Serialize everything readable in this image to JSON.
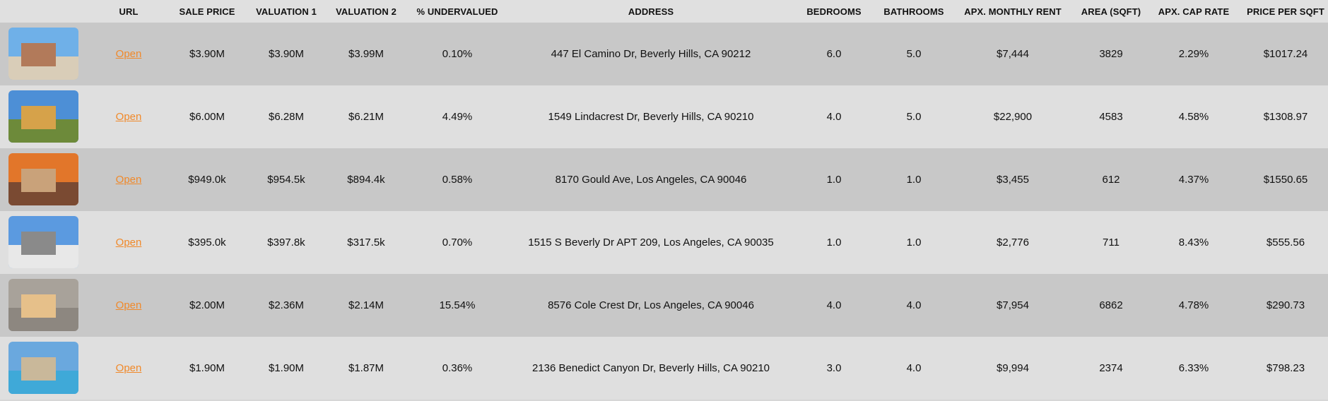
{
  "table": {
    "headers": [
      "URL",
      "SALE PRICE",
      "VALUATION 1",
      "VALUATION 2",
      "% UNDERVALUED",
      "ADDRESS",
      "BEDROOMS",
      "BATHROOMS",
      "APX. MONTHLY RENT",
      "AREA (SQFT)",
      "APX. CAP RATE",
      "PRICE PER SQFT"
    ],
    "rows": [
      [
        "Open",
        "$3.90M",
        "$3.90M",
        "$3.99M",
        "0.10%",
        "447 El Camino Dr, Beverly Hills, CA 90212",
        "6.0",
        "5.0",
        "$7,444",
        "3829",
        "2.29%",
        "$1017.24"
      ],
      [
        "Open",
        "$6.00M",
        "$6.28M",
        "$6.21M",
        "4.49%",
        "1549 Lindacrest Dr, Beverly Hills, CA 90210",
        "4.0",
        "5.0",
        "$22,900",
        "4583",
        "4.58%",
        "$1308.97"
      ],
      [
        "Open",
        "$949.0k",
        "$954.5k",
        "$894.4k",
        "0.58%",
        "8170 Gould Ave, Los Angeles, CA 90046",
        "1.0",
        "1.0",
        "$3,455",
        "612",
        "4.37%",
        "$1550.65"
      ],
      [
        "Open",
        "$395.0k",
        "$397.8k",
        "$317.5k",
        "0.70%",
        "1515 S Beverly Dr APT 209, Los Angeles, CA 90035",
        "1.0",
        "1.0",
        "$2,776",
        "711",
        "8.43%",
        "$555.56"
      ],
      [
        "Open",
        "$2.00M",
        "$2.36M",
        "$2.14M",
        "15.54%",
        "8576 Cole Crest Dr, Los Angeles, CA 90046",
        "4.0",
        "4.0",
        "$7,954",
        "6862",
        "4.78%",
        "$290.73"
      ],
      [
        "Open",
        "$1.90M",
        "$1.90M",
        "$1.87M",
        "0.36%",
        "2136 Benedict Canyon Dr, Beverly Hills, CA 90210",
        "3.0",
        "4.0",
        "$9,994",
        "2374",
        "6.33%",
        "$798.23"
      ]
    ]
  }
}
